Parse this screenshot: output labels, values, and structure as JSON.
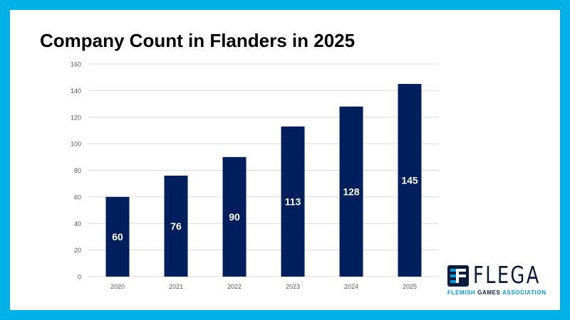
{
  "slide": {
    "title": "Company Count in Flanders in 2025",
    "colors": {
      "frame": "#00b0e6",
      "bar": "#001f5c",
      "bar_label": "#ffffff",
      "grid": "#d9d9d9",
      "tick": "#595959"
    }
  },
  "chart_data": {
    "type": "bar",
    "title": "Company Count in Flanders in 2025",
    "categories": [
      "2020",
      "2021",
      "2022",
      "2023",
      "2024",
      "2025"
    ],
    "values": [
      60,
      76,
      90,
      113,
      128,
      145
    ],
    "ylim": [
      0,
      160
    ],
    "yticks": [
      "0",
      "20",
      "40",
      "60",
      "80",
      "100",
      "120",
      "140",
      "160"
    ],
    "grid": true,
    "legend": "none",
    "data_labels": true
  },
  "logo": {
    "word": "FLEGA",
    "tagline_1": "FLEMISH",
    "tagline_2": "GAMES",
    "tagline_3": "ASSOCIATION",
    "icon": "flega-logo-icon"
  }
}
